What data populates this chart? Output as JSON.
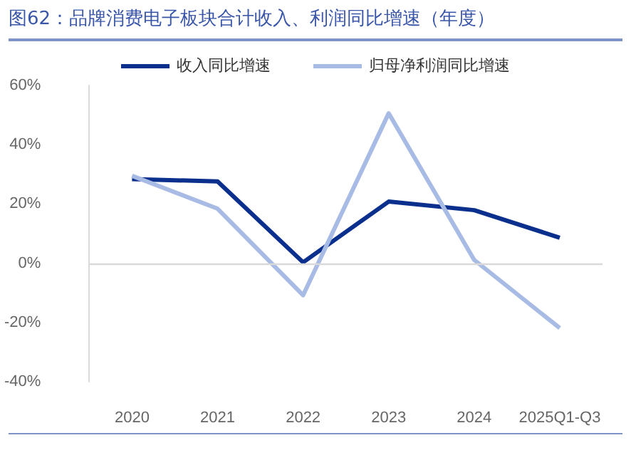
{
  "chart_data": {
    "type": "line",
    "title": "图62：品牌消费电子板块合计收入、利润同比增速（年度）",
    "categories": [
      "2020",
      "2021",
      "2022",
      "2023",
      "2024",
      "2025Q1-Q3"
    ],
    "series": [
      {
        "name": "收入同比增速",
        "color": "#0a2f8c",
        "values": [
          28.4,
          27.6,
          0.3,
          20.8,
          17.9,
          8.6
        ]
      },
      {
        "name": "归母净利润同比增速",
        "color": "#a8bbe4",
        "values": [
          29.5,
          18.4,
          -10.8,
          50.6,
          1.1,
          -21.9
        ]
      }
    ],
    "ylim": [
      -40,
      60
    ],
    "yticks": [
      {
        "value": -40,
        "label": "-40%"
      },
      {
        "value": -20,
        "label": "-20%"
      },
      {
        "value": 0,
        "label": "0%"
      },
      {
        "value": 20,
        "label": "20%"
      },
      {
        "value": 40,
        "label": "40%"
      },
      {
        "value": 60,
        "label": "60%"
      }
    ],
    "grid": false,
    "ref_lines": [
      {
        "axis": "y",
        "value": 0,
        "color": "#d9d9d9"
      }
    ],
    "legend": "top",
    "marker": "none",
    "line_style": "solid"
  }
}
